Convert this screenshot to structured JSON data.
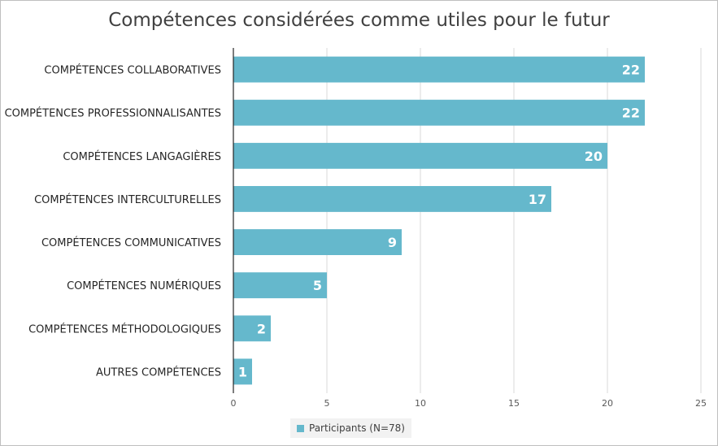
{
  "chart_data": {
    "type": "bar",
    "orientation": "horizontal",
    "title": "Compétences considérées comme utiles pour le futur",
    "categories": [
      "COMPÉTENCES COLLABORATIVES",
      "COMPÉTENCES PROFESSIONNALISANTES",
      "COMPÉTENCES LANGAGIÈRES",
      "COMPÉTENCES INTERCULTURELLES",
      "COMPÉTENCES COMMUNICATIVES",
      "COMPÉTENCES NUMÉRIQUES",
      "COMPÉTENCES MÉTHODOLOGIQUES",
      "AUTRES COMPÉTENCES"
    ],
    "series": [
      {
        "name": "Participants (N=78)",
        "values": [
          22,
          22,
          20,
          17,
          9,
          5,
          2,
          1
        ],
        "color": "#65b8cc"
      }
    ],
    "xlim": [
      0,
      25
    ],
    "xticks": [
      "0",
      "5",
      "10",
      "15",
      "20",
      "25"
    ],
    "grid": true,
    "legend_position": "bottom-center"
  }
}
